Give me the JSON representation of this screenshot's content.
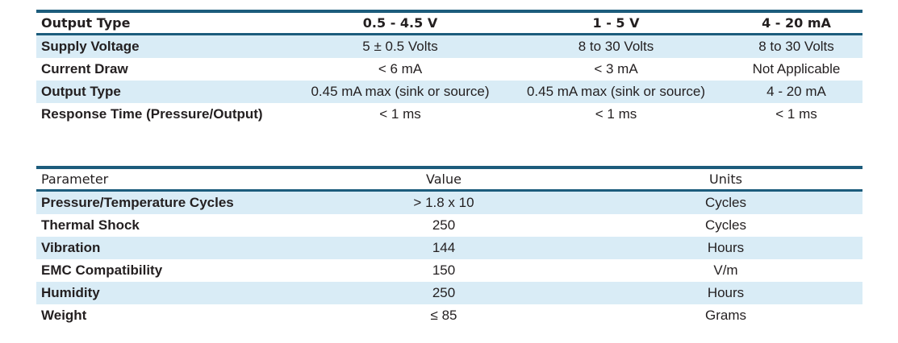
{
  "table1": {
    "headers": [
      "Output Type",
      "0.5 - 4.5 V",
      "1 - 5 V",
      "4 - 20 mA"
    ],
    "rows": [
      [
        "Supply Voltage",
        "5 ± 0.5 Volts",
        "8 to 30 Volts",
        "8 to 30 Volts"
      ],
      [
        "Current Draw",
        "< 6 mA",
        "< 3 mA",
        "Not Applicable"
      ],
      [
        "Output Type",
        "0.45 mA max (sink or source)",
        "0.45 mA max (sink or source)",
        "4 - 20 mA"
      ],
      [
        "Response Time (Pressure/Output)",
        "< 1 ms",
        "< 1 ms",
        "< 1 ms"
      ]
    ]
  },
  "table2": {
    "headers": [
      "Parameter",
      "Value",
      "Units"
    ],
    "rows": [
      [
        "Pressure/Temperature Cycles",
        "> 1.8 x 10",
        "Cycles"
      ],
      [
        "Thermal Shock",
        "250",
        "Cycles"
      ],
      [
        "Vibration",
        "144",
        "Hours"
      ],
      [
        "EMC Compatibility",
        "150",
        "V/m"
      ],
      [
        "Humidity",
        "250",
        "Hours"
      ],
      [
        "Weight",
        "≤ 85",
        "Grams"
      ]
    ]
  },
  "colors": {
    "rule": "#1c5c7c",
    "row_shade": "#d9ecf6",
    "text": "#231f20"
  }
}
